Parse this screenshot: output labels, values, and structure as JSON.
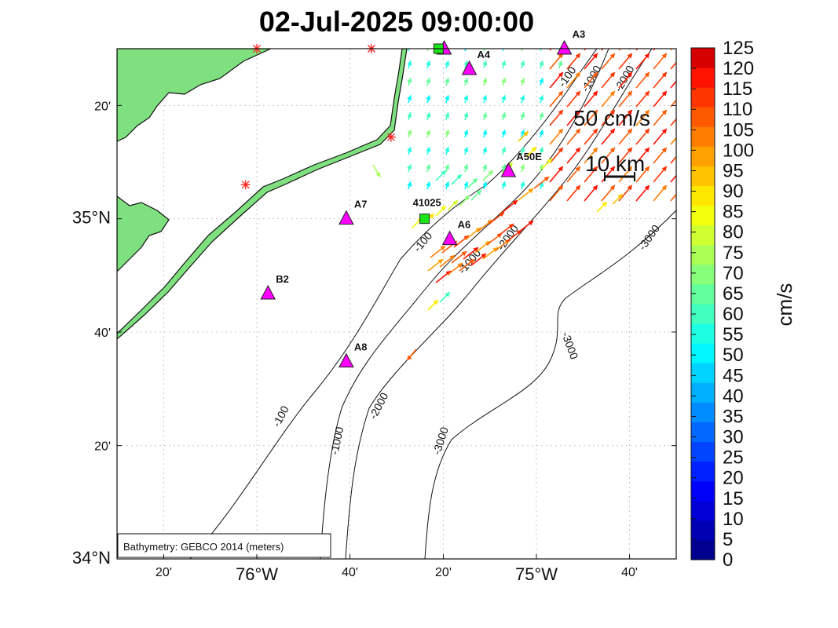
{
  "title": "02-Jul-2025 09:00:00",
  "map": {
    "lon_labels": [
      {
        "lon": -76.333,
        "text": "20'",
        "major": false
      },
      {
        "lon": -76.0,
        "text": "76°W",
        "major": true
      },
      {
        "lon": -75.667,
        "text": "40'",
        "major": false
      },
      {
        "lon": -75.333,
        "text": "20'",
        "major": false
      },
      {
        "lon": -75.0,
        "text": "75°W",
        "major": true
      },
      {
        "lon": -74.667,
        "text": "40'",
        "major": false
      }
    ],
    "lat_labels": [
      {
        "lat": 35.333,
        "text": "20'",
        "major": false
      },
      {
        "lat": 35.0,
        "text": "35°N",
        "major": true
      },
      {
        "lat": 34.667,
        "text": "40'",
        "major": false
      },
      {
        "lat": 34.333,
        "text": "20'",
        "major": false
      },
      {
        "lat": 34.0,
        "text": "34°N",
        "major": true
      }
    ],
    "bathymetry_note": "Bathymetry: GEBCO 2014 (meters)",
    "scale_speed_label": "50 cm/s",
    "scale_distance_label": "10 km",
    "land_color": "#7fe07f",
    "stations": [
      {
        "name": "A3",
        "lon": -74.9,
        "lat": 35.5,
        "type": "triangle"
      },
      {
        "name": "A4",
        "lon": -75.24,
        "lat": 35.44,
        "type": "triangle"
      },
      {
        "name": "A50E",
        "lon": -75.1,
        "lat": 35.14,
        "type": "triangle"
      },
      {
        "name": "A7",
        "lon": -75.68,
        "lat": 35.0,
        "type": "triangle"
      },
      {
        "name": "A6",
        "lon": -75.31,
        "lat": 34.94,
        "type": "triangle"
      },
      {
        "name": "B2",
        "lon": -75.96,
        "lat": 34.78,
        "type": "triangle"
      },
      {
        "name": "A8",
        "lon": -75.68,
        "lat": 34.58,
        "type": "triangle"
      },
      {
        "name": "",
        "lon": -75.33,
        "lat": 35.5,
        "type": "triangle"
      },
      {
        "name": "41025",
        "lon": -75.4,
        "lat": 35.0,
        "type": "square"
      },
      {
        "name": "",
        "lon": -75.35,
        "lat": 35.5,
        "type": "square"
      }
    ],
    "hf_radar_sites": [
      {
        "lon": -76.0,
        "lat": 35.5
      },
      {
        "lon": -75.59,
        "lat": 35.5
      },
      {
        "lon": -75.52,
        "lat": 35.24
      },
      {
        "lon": -76.04,
        "lat": 35.1
      }
    ],
    "contour_labels": [
      {
        "text": "-100"
      },
      {
        "text": "-1000"
      },
      {
        "text": "-2000"
      },
      {
        "text": "-3000"
      }
    ]
  },
  "colorbar": {
    "label": "cm/s",
    "ticks": [
      "0",
      "5",
      "10",
      "15",
      "20",
      "25",
      "30",
      "35",
      "40",
      "45",
      "50",
      "55",
      "60",
      "65",
      "70",
      "75",
      "80",
      "85",
      "90",
      "95",
      "100",
      "105",
      "110",
      "115",
      "120",
      "125"
    ],
    "colors": [
      "#00008f",
      "#0000b3",
      "#0000d6",
      "#0000fa",
      "#0020ff",
      "#0044ff",
      "#0068ff",
      "#008cff",
      "#00afff",
      "#00d3ff",
      "#00f7ff",
      "#1cffe3",
      "#40ffbf",
      "#63ff9c",
      "#87ff78",
      "#abff54",
      "#cfff30",
      "#f2ff0d",
      "#ffe800",
      "#ffc400",
      "#ffa100",
      "#ff7d00",
      "#ff5900",
      "#ff3500",
      "#ff1200",
      "#d60000"
    ]
  }
}
